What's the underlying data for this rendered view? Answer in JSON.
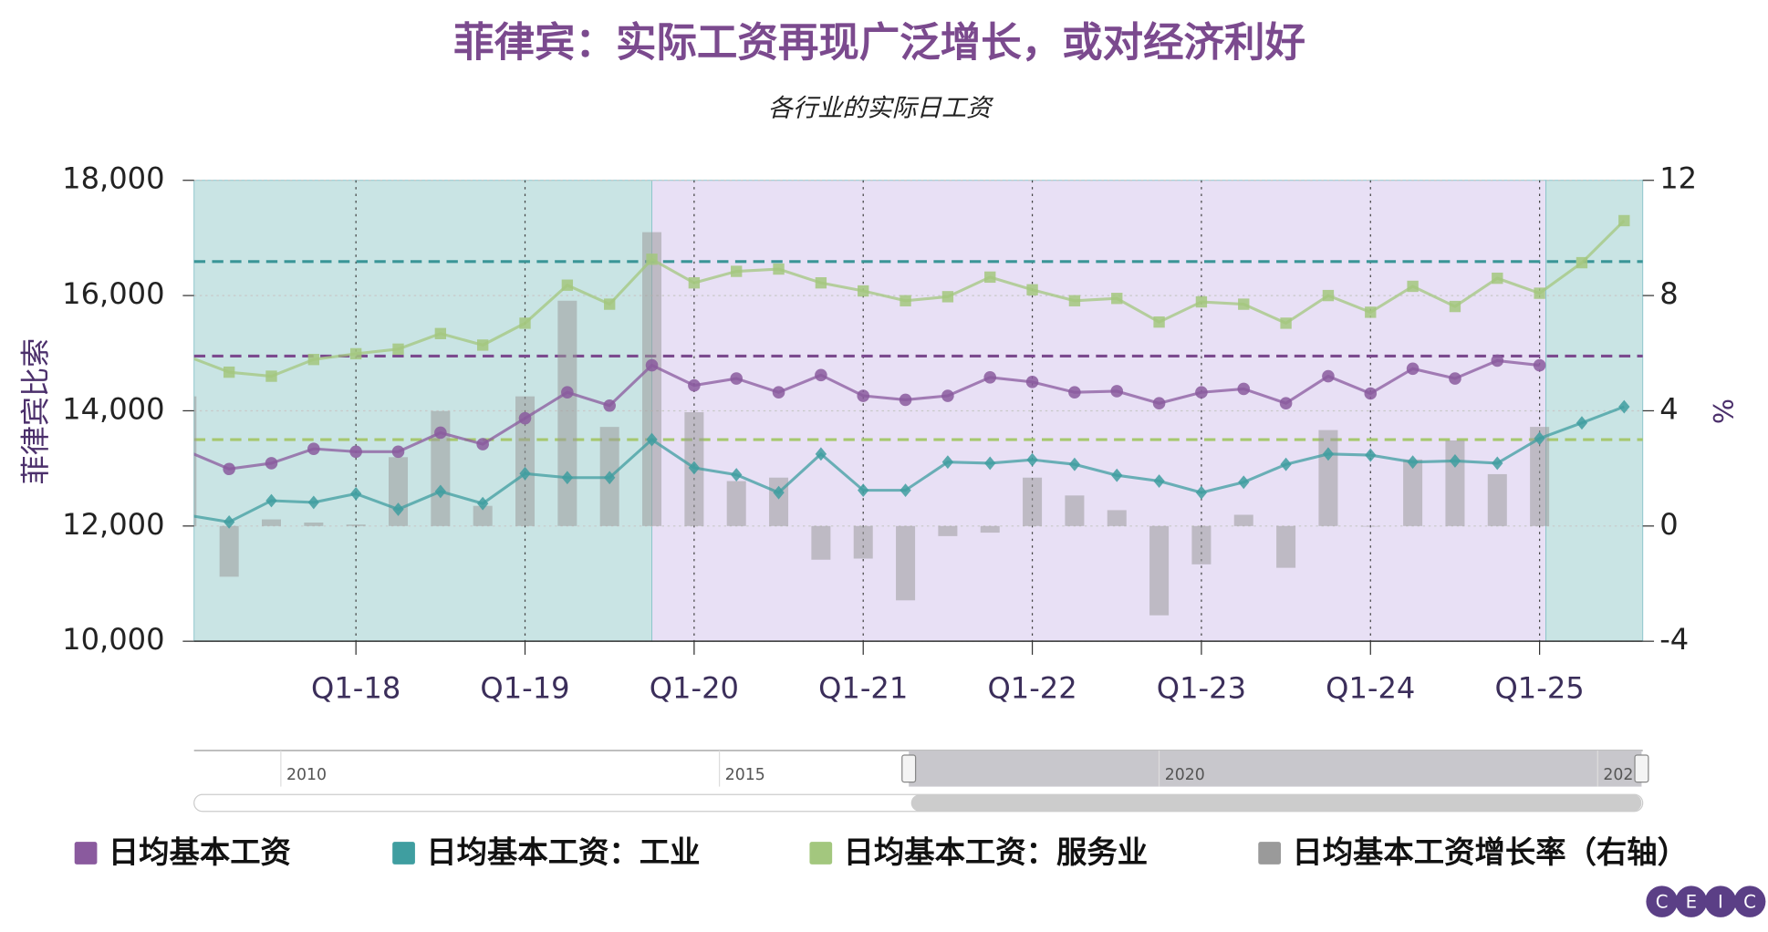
{
  "chart_data": {
    "type": "line",
    "title": "菲律宾：实际工资再现广泛增长，或对经济利好",
    "subtitle": "各行业的实际日工资",
    "ylabel": "菲律宾比索",
    "y2label": "%",
    "categories": [
      null,
      null,
      null,
      null,
      "Q1-18",
      null,
      null,
      null,
      "Q1-19",
      null,
      null,
      null,
      "Q1-20",
      null,
      null,
      null,
      "Q1-21",
      null,
      null,
      null,
      "Q1-22",
      null,
      null,
      null,
      "Q1-23",
      null,
      null,
      null,
      "Q1-24",
      null,
      null,
      null,
      "Q1-25",
      null,
      null
    ],
    "xlim": [
      0.17,
      34.44
    ],
    "ylim": [
      10000,
      18000
    ],
    "yticks": [
      {
        "value": 10000,
        "label": "10,000"
      },
      {
        "value": 12000,
        "label": "12,000"
      },
      {
        "value": 14000,
        "label": "14,000"
      },
      {
        "value": 16000,
        "label": "16,000"
      },
      {
        "value": 18000,
        "label": "18,000"
      }
    ],
    "y2lim": [
      -4,
      12
    ],
    "y2ticks": [
      -4,
      0,
      4,
      8,
      12
    ],
    "grid": true,
    "bands": [
      {
        "from": 0.17,
        "to": 11,
        "color": "#c9e4e4"
      },
      {
        "from": 11,
        "to": 32.15,
        "color": "#e8e0f5"
      },
      {
        "from": 32.15,
        "to": 34.44,
        "color": "#c9e4e4"
      }
    ],
    "reference_lines": [
      {
        "value": 16590,
        "color": "#3a9597"
      },
      {
        "value": 14950,
        "color": "#7b4a8e"
      },
      {
        "value": 13500,
        "color": "#a6c86e"
      }
    ],
    "series": [
      {
        "name": "日均基本工资",
        "color": "#8a5a9e",
        "marker": "circle",
        "values": [
          13300,
          12990,
          13090,
          13340,
          13290,
          13290,
          13620,
          13420,
          13870,
          14320,
          14090,
          14790,
          14440,
          14560,
          14320,
          14620,
          14260,
          14190,
          14260,
          14580,
          14500,
          14320,
          14340,
          14130,
          14320,
          14380,
          14130,
          14600,
          14300,
          14730,
          14560,
          14870,
          14790,
          null,
          null
        ]
      },
      {
        "name": "日均基本工资：工业",
        "color": "#3f9ea0",
        "marker": "diamond",
        "values": [
          12190,
          12070,
          12440,
          12410,
          12560,
          12290,
          12600,
          12390,
          12910,
          12840,
          12840,
          13500,
          13010,
          12890,
          12580,
          13250,
          12620,
          12620,
          13110,
          13090,
          13150,
          13070,
          12880,
          12780,
          12580,
          12760,
          13070,
          13250,
          13230,
          13110,
          13130,
          13090,
          13520,
          13790,
          14070
        ]
      },
      {
        "name": "日均基本工资：服务业",
        "color": "#a3c77e",
        "marker": "square",
        "values": [
          14950,
          14670,
          14600,
          14890,
          14990,
          15070,
          15340,
          15140,
          15520,
          16180,
          15850,
          16630,
          16220,
          16420,
          16460,
          16220,
          16080,
          15910,
          15980,
          16320,
          16100,
          15910,
          15950,
          15540,
          15890,
          15850,
          15520,
          16000,
          15710,
          16160,
          15810,
          16300,
          16040,
          16570,
          17300
        ]
      },
      {
        "name": "日均基本工资增长率（右轴）",
        "color": "#9a9a9a",
        "type": "bar",
        "axis": "y2",
        "values": [
          4.5,
          -1.76,
          0.23,
          0.12,
          0.05,
          2.39,
          3.99,
          0.7,
          4.5,
          7.82,
          3.44,
          10.2,
          3.95,
          1.56,
          1.68,
          -1.17,
          -1.13,
          -2.58,
          -0.35,
          -0.23,
          1.68,
          1.06,
          0.55,
          -3.1,
          -1.33,
          0.39,
          -1.45,
          3.33,
          0,
          2.31,
          2.97,
          1.8,
          3.44,
          null,
          null
        ]
      }
    ],
    "navigator": {
      "labels": [
        "2010",
        "2015",
        "2020",
        "202"
      ]
    },
    "logo": [
      "C",
      "E",
      "I",
      "C"
    ]
  }
}
